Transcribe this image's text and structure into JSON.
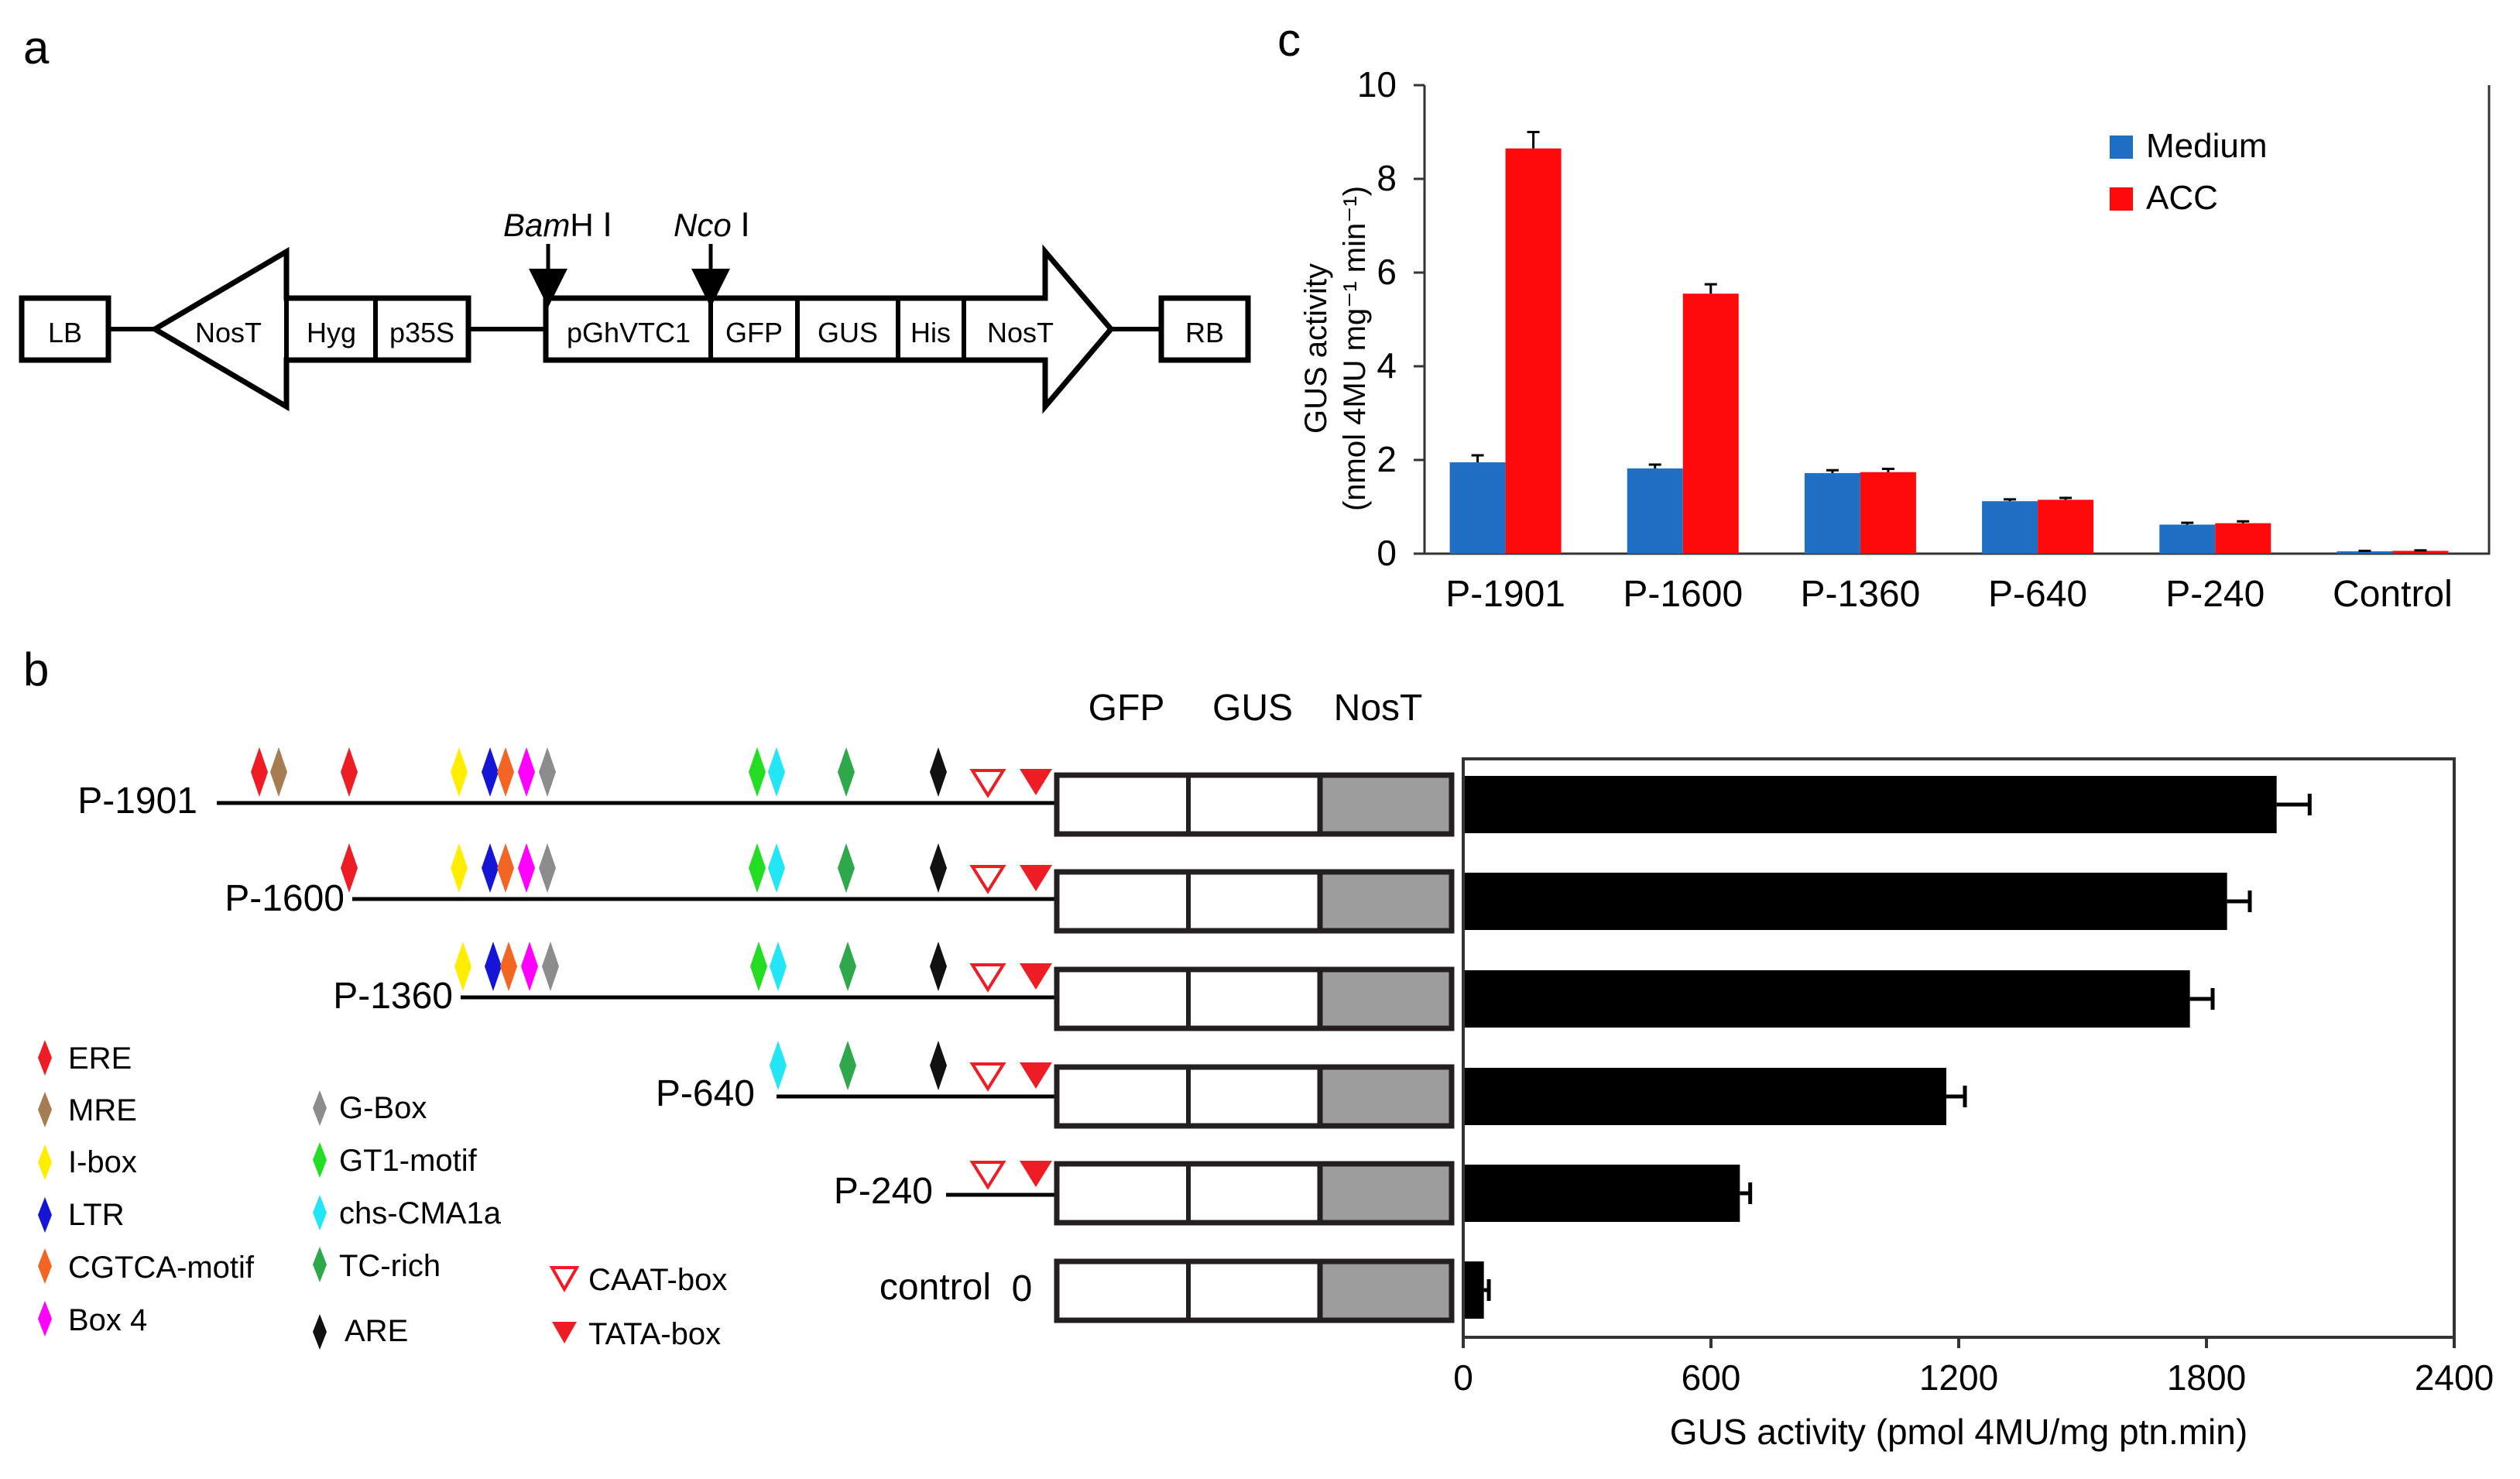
{
  "panels": {
    "a": "a",
    "b": "b",
    "c": "c"
  },
  "construct": {
    "lb": "LB",
    "rb": "RB",
    "left_cassette": [
      "NosT",
      "Hyg",
      "p35S"
    ],
    "right_cassette": [
      "pGhVTC1",
      "GFP",
      "GUS",
      "His",
      "NosT"
    ],
    "site1": {
      "italic": "Bam",
      "rest": "H Ⅰ"
    },
    "site2": {
      "italic": "Nco",
      "rest": " Ⅰ"
    }
  },
  "reporter_header": {
    "gfp": "GFP",
    "gus": "GUS",
    "nost": "NosT"
  },
  "constructs_b": [
    {
      "label": "P-1901",
      "motifs": [
        "ERE",
        "MRE",
        "ERE",
        "I-box",
        "LTR",
        "CGTCA-motif",
        "Box 4",
        "G-Box",
        "GT1-motif",
        "chs-CMA1a",
        "TC-rich",
        "ARE",
        "CAAT-box",
        "TATA-box"
      ]
    },
    {
      "label": "P-1600",
      "motifs": [
        "ERE",
        "I-box",
        "LTR",
        "CGTCA-motif",
        "Box 4",
        "G-Box",
        "GT1-motif",
        "chs-CMA1a",
        "TC-rich",
        "ARE",
        "CAAT-box",
        "TATA-box"
      ]
    },
    {
      "label": "P-1360",
      "motifs": [
        "I-box",
        "LTR",
        "CGTCA-motif",
        "Box 4",
        "G-Box",
        "GT1-motif",
        "chs-CMA1a",
        "TC-rich",
        "ARE",
        "CAAT-box",
        "TATA-box"
      ]
    },
    {
      "label": "P-640",
      "motifs": [
        "chs-CMA1a",
        "TC-rich",
        "ARE",
        "CAAT-box",
        "TATA-box"
      ]
    },
    {
      "label": "P-240",
      "motifs": [
        "CAAT-box",
        "TATA-box"
      ]
    },
    {
      "label": "control",
      "extra": "0",
      "motifs": []
    }
  ],
  "legend_b": [
    {
      "label": "ERE",
      "color": "#ee1c24",
      "shape": "diamond-icon"
    },
    {
      "label": "MRE",
      "color": "#a67c52",
      "shape": "diamond-icon"
    },
    {
      "label": "I-box",
      "color": "#ffee00",
      "shape": "diamond-icon"
    },
    {
      "label": "LTR",
      "color": "#1515d6",
      "shape": "diamond-icon"
    },
    {
      "label": "CGTCA-motif",
      "color": "#f26522",
      "shape": "diamond-icon"
    },
    {
      "label": "Box 4",
      "color": "#ff00ff",
      "shape": "diamond-icon"
    },
    {
      "label": "G-Box",
      "color": "#8c8c8c",
      "shape": "diamond-icon"
    },
    {
      "label": "GT1-motif",
      "color": "#22dd22",
      "shape": "diamond-icon"
    },
    {
      "label": "chs-CMA1a",
      "color": "#22e5f5",
      "shape": "diamond-icon"
    },
    {
      "label": "TC-rich",
      "color": "#2ea84a",
      "shape": "diamond-icon"
    },
    {
      "label": "ARE",
      "color": "#111111",
      "shape": "diamond-icon"
    },
    {
      "label": "CAAT-box",
      "color": "#ee1c24",
      "shape": "open-triangle-icon"
    },
    {
      "label": "TATA-box",
      "color": "#ee1c24",
      "shape": "filled-triangle-icon"
    }
  ],
  "chart_data": [
    {
      "panel": "b",
      "type": "bar",
      "orientation": "horizontal",
      "categories": [
        "P-1901",
        "P-1600",
        "P-1360",
        "P-640",
        "P-240",
        "control"
      ],
      "values": [
        1970,
        1850,
        1760,
        1170,
        670,
        50
      ],
      "errors": [
        80,
        55,
        55,
        45,
        25,
        12
      ],
      "xlabel": "GUS activity (pmol 4MU/mg ptn.min)",
      "xlim": [
        0,
        2400
      ],
      "xticks": [
        0,
        600,
        1200,
        1800,
        2400
      ],
      "color": "#000000"
    },
    {
      "panel": "c",
      "type": "bar",
      "categories": [
        "P-1901",
        "P-1600",
        "P-1360",
        "P-640",
        "P-240",
        "Control"
      ],
      "series": [
        {
          "name": "Medium",
          "color": "#1f6fc5",
          "values": [
            1.95,
            1.82,
            1.72,
            1.12,
            0.62,
            0.05
          ],
          "errors": [
            0.15,
            0.08,
            0.06,
            0.04,
            0.04,
            0.01
          ]
        },
        {
          "name": "ACC",
          "color": "#ff0a0a",
          "values": [
            8.65,
            5.55,
            1.74,
            1.15,
            0.65,
            0.06
          ],
          "errors": [
            0.35,
            0.2,
            0.07,
            0.04,
            0.04,
            0.01
          ]
        }
      ],
      "ylabel_line1": "GUS activity",
      "ylabel_line2": "(nmol 4MU mg⁻¹ min⁻¹)",
      "ylim": [
        0,
        10
      ],
      "yticks": [
        0,
        2,
        4,
        6,
        8,
        10
      ],
      "legend": "top-right"
    }
  ]
}
